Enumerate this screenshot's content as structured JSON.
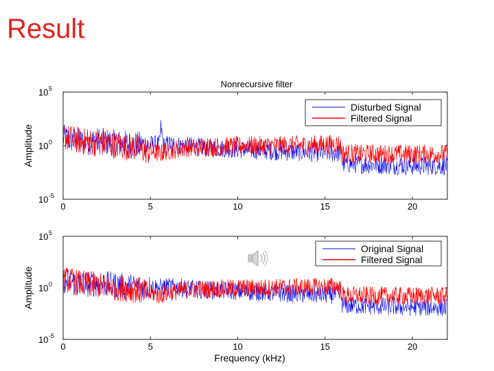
{
  "slide": {
    "title": "Result"
  },
  "chart_data": [
    {
      "type": "line",
      "title": "Nonrecursive filter",
      "xlabel": "",
      "ylabel": "Amplitude",
      "xlim": [
        0,
        22
      ],
      "ylim_log10": [
        -5,
        5
      ],
      "xticks": [
        0,
        5,
        10,
        15,
        20
      ],
      "yticks": [
        {
          "base": "10",
          "exp": "5"
        },
        {
          "base": "10",
          "exp": "0"
        },
        {
          "base": "10",
          "exp": "-5"
        }
      ],
      "grid": false,
      "legend_position": "top-right",
      "series": [
        {
          "name": "Disturbed Signal",
          "color": "#0000ee",
          "envelope": {
            "x": [
              0,
              1,
              2,
              3,
              4,
              5,
              5.5,
              5.6,
              5.75,
              6,
              7,
              8,
              9,
              10,
              12,
              14,
              15,
              15.8,
              15.9,
              16,
              18,
              20,
              22
            ],
            "log10_amplitude": [
              1.0,
              0.6,
              0.7,
              0.5,
              0.35,
              0.3,
              0.2,
              1.9,
              0.15,
              0.3,
              0.15,
              0.0,
              -0.05,
              -0.15,
              -0.3,
              -0.45,
              -0.5,
              -0.5,
              -0.6,
              -1.5,
              -1.6,
              -1.7,
              -1.7
            ]
          }
        },
        {
          "name": "Filtered Signal",
          "color": "#ff0000",
          "envelope": {
            "x": [
              0,
              1,
              2,
              3,
              4,
              5,
              5.5,
              6,
              7,
              8,
              9,
              10,
              12,
              14,
              15,
              15.8,
              15.9,
              16,
              18,
              20,
              22
            ],
            "log10_amplitude": [
              1.1,
              0.7,
              0.5,
              0.3,
              0.1,
              -0.3,
              -0.55,
              -0.3,
              0.0,
              0.05,
              0.1,
              0.15,
              0.2,
              0.25,
              0.3,
              0.35,
              0.0,
              -0.55,
              -0.6,
              -0.6,
              -0.6
            ]
          }
        }
      ]
    },
    {
      "type": "line",
      "title": "",
      "xlabel": "Frequency (kHz)",
      "ylabel": "Amplitude",
      "xlim": [
        0,
        22
      ],
      "ylim_log10": [
        -5,
        5
      ],
      "xticks": [
        0,
        5,
        10,
        15,
        20
      ],
      "yticks": [
        {
          "base": "10",
          "exp": "5"
        },
        {
          "base": "10",
          "exp": "0"
        },
        {
          "base": "10",
          "exp": "-5"
        }
      ],
      "grid": false,
      "legend_position": "top-right",
      "series": [
        {
          "name": "Original Signal",
          "color": "#0000ee",
          "envelope": {
            "x": [
              0,
              1,
              2,
              3,
              4,
              5,
              5.5,
              6,
              7,
              8,
              9,
              10,
              12,
              14,
              15,
              15.8,
              15.9,
              16,
              18,
              20,
              22
            ],
            "log10_amplitude": [
              1.0,
              0.6,
              0.7,
              0.5,
              0.35,
              0.3,
              0.2,
              0.3,
              0.15,
              0.0,
              -0.05,
              -0.15,
              -0.3,
              -0.45,
              -0.5,
              -0.5,
              -0.6,
              -1.5,
              -1.6,
              -1.7,
              -1.7
            ]
          }
        },
        {
          "name": "Filtered Signal",
          "color": "#ff0000",
          "envelope": {
            "x": [
              0,
              1,
              2,
              3,
              4,
              5,
              5.5,
              6,
              7,
              8,
              9,
              10,
              12,
              14,
              15,
              15.8,
              15.9,
              16,
              18,
              20,
              22
            ],
            "log10_amplitude": [
              1.1,
              0.7,
              0.5,
              0.3,
              0.1,
              -0.3,
              -0.55,
              -0.3,
              0.0,
              0.05,
              0.1,
              0.15,
              0.2,
              0.25,
              0.3,
              0.35,
              0.0,
              -0.55,
              -0.6,
              -0.6,
              -0.6
            ]
          }
        }
      ]
    }
  ],
  "media": {
    "icon": "speaker-icon"
  }
}
